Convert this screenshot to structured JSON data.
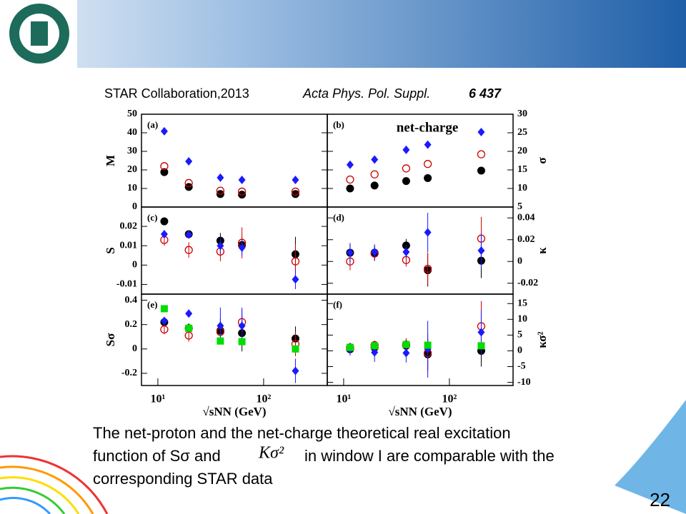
{
  "slide": {
    "citation": "STAR Collaboration,2013",
    "journal": "Acta Phys. Pol. Suppl.",
    "volume": "6 437",
    "body": [
      "The net-proton and the net-charge theoretical real excitation",
      "function of Sσ and",
      "in window I are comparable with the",
      "corresponding STAR data"
    ],
    "formula": "Kσ²",
    "page_number": "22"
  },
  "chart_data": [
    {
      "type": "scatter",
      "panel_label": "(a)",
      "ylabel": "M",
      "log_x": true,
      "xlim": [
        7,
        400
      ],
      "ylim": [
        0,
        50
      ],
      "yticks": [
        0,
        10,
        20,
        30,
        40,
        50
      ],
      "x": [
        11.5,
        19.6,
        39,
        62.4,
        200
      ],
      "series": [
        {
          "color": "#000000",
          "marker": "circle",
          "values": [
            18.8,
            10.8,
            7,
            6.7,
            7
          ]
        },
        {
          "color": "#cc0000",
          "marker": "open-circle",
          "values": [
            22,
            12.9,
            8.8,
            8.3,
            8.3
          ]
        },
        {
          "color": "#1a1aff",
          "marker": "diamond",
          "values": [
            40.8,
            24.6,
            15.8,
            14.6,
            14.6
          ]
        }
      ]
    },
    {
      "type": "scatter",
      "panel_label": "(b)",
      "title": "net-charge",
      "ylabel": "σ",
      "log_x": true,
      "xlim": [
        7,
        400
      ],
      "y2lim": [
        5,
        30
      ],
      "y2ticks": [
        5,
        10,
        15,
        20,
        25,
        30
      ],
      "x": [
        11.5,
        19.6,
        39,
        62.4,
        200
      ],
      "series": [
        {
          "color": "#000000",
          "marker": "circle",
          "axis": "y2",
          "values": [
            10,
            10.8,
            12,
            12.8,
            14.8
          ]
        },
        {
          "color": "#cc0000",
          "marker": "open-circle",
          "axis": "y2",
          "values": [
            12.4,
            13.8,
            15.4,
            16.6,
            19.2
          ]
        },
        {
          "color": "#1a1aff",
          "marker": "diamond",
          "axis": "y2",
          "values": [
            16.4,
            17.8,
            20.4,
            21.8,
            25.2
          ]
        }
      ]
    },
    {
      "type": "scatter",
      "panel_label": "(c)",
      "ylabel": "S",
      "log_x": true,
      "xlim": [
        7,
        400
      ],
      "ylim": [
        -0.015,
        0.03
      ],
      "yticks": [
        -0.01,
        0,
        0.01,
        0.02
      ],
      "x": [
        11.5,
        19.6,
        39,
        62.4,
        200
      ],
      "series": [
        {
          "color": "#000000",
          "marker": "circle",
          "values": [
            0.0226,
            0.016,
            0.0126,
            0.0104,
            0.0056
          ],
          "errors": [
            0.002,
            0.002,
            0.004,
            0.004,
            0.009
          ]
        },
        {
          "color": "#cc0000",
          "marker": "open-circle",
          "values": [
            0.013,
            0.0078,
            0.007,
            0.0115,
            0.0019
          ],
          "errors": [
            0.003,
            0.004,
            0.005,
            0.008,
            0.009
          ]
        },
        {
          "color": "#1a1aff",
          "marker": "diamond",
          "values": [
            0.016,
            0.0157,
            0.01,
            0.009,
            -0.0074
          ],
          "errors": [
            0.001,
            0.002,
            0.004,
            0.004,
            0.005
          ]
        }
      ]
    },
    {
      "type": "scatter",
      "panel_label": "(d)",
      "ylabel": "κ",
      "log_x": true,
      "xlim": [
        7,
        400
      ],
      "y2lim": [
        -0.03,
        0.05
      ],
      "y2ticks": [
        -0.02,
        0,
        0.02,
        0.04
      ],
      "x": [
        11.5,
        19.6,
        39,
        62.4,
        200
      ],
      "series": [
        {
          "color": "#000000",
          "marker": "circle",
          "axis": "y2",
          "values": [
            0.008,
            0.008,
            0.0147,
            -0.008,
            0.0007
          ],
          "errors": [
            0.008,
            0.007,
            0.006,
            0.015,
            0.016
          ]
        },
        {
          "color": "#cc0000",
          "marker": "open-circle",
          "axis": "y2",
          "values": [
            0,
            0.0073,
            0.0013,
            -0.0067,
            0.021
          ],
          "errors": [
            0.008,
            0.007,
            0.006,
            0.015,
            0.02
          ]
        },
        {
          "color": "#1a1aff",
          "marker": "diamond",
          "axis": "y2",
          "values": [
            0.008,
            0.0087,
            0.0087,
            0.0267,
            0.01
          ],
          "errors": [
            0.009,
            0.007,
            0.006,
            0.018,
            0.016
          ]
        }
      ]
    },
    {
      "type": "scatter",
      "panel_label": "(e)",
      "ylabel": "Sσ",
      "xlabel": "√sNN (GeV)",
      "log_x": true,
      "xlim": [
        7,
        400
      ],
      "xticks": [
        {
          "value": 10,
          "label": "10¹"
        },
        {
          "value": 100,
          "label": "10²"
        }
      ],
      "ylim": [
        -0.3,
        0.45
      ],
      "yticks": [
        -0.2,
        0,
        0.2,
        0.4
      ],
      "x": [
        11.5,
        19.6,
        39,
        62.4,
        200
      ],
      "series": [
        {
          "color": "#000000",
          "marker": "circle",
          "values": [
            0.22,
            0.17,
            0.15,
            0.13,
            0.085
          ],
          "errors": [
            0.03,
            0.04,
            0.1,
            0.15,
            0.1
          ]
        },
        {
          "color": "#cc0000",
          "marker": "open-circle",
          "values": [
            0.16,
            0.11,
            0.14,
            0.22,
            0.04
          ],
          "errors": [
            0.04,
            0.05,
            0.08,
            0.1,
            0.1
          ]
        },
        {
          "color": "#1a1aff",
          "marker": "diamond",
          "values": [
            0.23,
            0.29,
            0.19,
            0.19,
            -0.18
          ],
          "errors": [
            0.03,
            0.03,
            0.15,
            0.15,
            0.1
          ]
        },
        {
          "color": "#00dd00",
          "marker": "square",
          "values": [
            0.33,
            0.17,
            0.065,
            0.06,
            0
          ]
        }
      ]
    },
    {
      "type": "scatter",
      "panel_label": "(f)",
      "ylabel": "κσ²",
      "xlabel": "√sNN (GeV)",
      "log_x": true,
      "xlim": [
        7,
        400
      ],
      "xticks": [
        {
          "value": 10,
          "label": "10¹"
        },
        {
          "value": 100,
          "label": "10²"
        }
      ],
      "y2lim": [
        -11,
        18
      ],
      "y2ticks": [
        -10,
        -5,
        0,
        5,
        10,
        15
      ],
      "x": [
        11.5,
        19.6,
        39,
        62.4,
        200
      ],
      "series": [
        {
          "color": "#000000",
          "marker": "circle",
          "axis": "y2",
          "values": [
            0.5,
            1,
            1.6,
            -1.1,
            0
          ],
          "errors": [
            1.5,
            1.5,
            2,
            5,
            5
          ]
        },
        {
          "color": "#cc0000",
          "marker": "open-circle",
          "axis": "y2",
          "values": [
            1.1,
            1.8,
            2,
            -0.7,
            7.8
          ],
          "errors": [
            1.5,
            1.5,
            2,
            6,
            8
          ]
        },
        {
          "color": "#1a1aff",
          "marker": "diamond",
          "axis": "y2",
          "values": [
            0.5,
            -0.5,
            -0.7,
            0.5,
            5.9
          ],
          "errors": [
            2,
            3,
            3,
            9,
            7
          ]
        },
        {
          "color": "#00dd00",
          "marker": "square",
          "axis": "y2",
          "values": [
            1.1,
            1.6,
            2,
            1.8,
            1.6
          ]
        }
      ]
    }
  ]
}
